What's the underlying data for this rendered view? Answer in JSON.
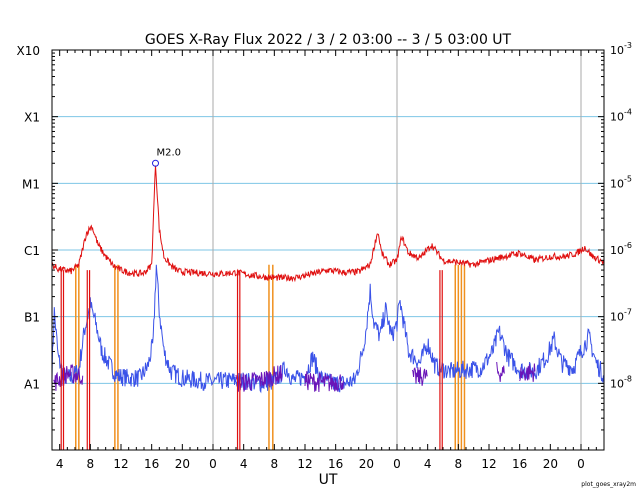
{
  "chart_data": {
    "type": "line",
    "title": "GOES X-Ray Flux   2022 /  3 /  2   03:00 --  3 /  5   03:00   UT",
    "xlabel": "UT",
    "footnote": "plot_goes_xray2m",
    "y_scale": "log",
    "ylim": [
      1e-09,
      0.001
    ],
    "left_labels": [
      {
        "label": "X10",
        "value": 0.001
      },
      {
        "label": "X1",
        "value": 0.0001
      },
      {
        "label": "M1",
        "value": 1e-05
      },
      {
        "label": "C1",
        "value": 1e-06
      },
      {
        "label": "B1",
        "value": 1e-07
      },
      {
        "label": "A1",
        "value": 1e-08
      }
    ],
    "right_labels": [
      {
        "base": "10",
        "exp": "-3",
        "value": 0.001
      },
      {
        "base": "10",
        "exp": "-4",
        "value": 0.0001
      },
      {
        "base": "10",
        "exp": "-5",
        "value": 1e-05
      },
      {
        "base": "10",
        "exp": "-6",
        "value": 1e-06
      },
      {
        "base": "10",
        "exp": "-7",
        "value": 1e-07
      },
      {
        "base": "10",
        "exp": "-8",
        "value": 1e-08
      }
    ],
    "x_range_hours": [
      0,
      72
    ],
    "x_tick_labels": [
      "4",
      "8",
      "12",
      "16",
      "20",
      "0",
      "4",
      "8",
      "12",
      "16",
      "20",
      "0",
      "4",
      "8",
      "12",
      "16",
      "20",
      "0"
    ],
    "day_boundaries_hours": [
      21,
      45,
      69
    ],
    "grid": true,
    "colors": {
      "long": "#e01010",
      "short": "#3a52e8",
      "overlap": "#6a14b8",
      "gap": "#f0901e",
      "grid_h": "#7ec6e6",
      "grid_v": "#aaaaaa"
    },
    "annotation": {
      "label": "M2.0",
      "x": 13.5,
      "y": 2e-05
    },
    "long_channel": [
      [
        0,
        6e-07
      ],
      [
        0.8,
        5.2e-07
      ],
      [
        1.5,
        5e-07
      ],
      [
        2.5,
        4.8e-07
      ],
      [
        3.5,
        6e-07
      ],
      [
        4.5,
        1.8e-06
      ],
      [
        5.2,
        2.3e-06
      ],
      [
        6,
        1.2e-06
      ],
      [
        7,
        8e-07
      ],
      [
        8,
        5.8e-07
      ],
      [
        9,
        5e-07
      ],
      [
        10,
        4.6e-07
      ],
      [
        11,
        4.4e-07
      ],
      [
        12,
        4.5e-07
      ],
      [
        13,
        6e-07
      ],
      [
        13.5,
        2e-05
      ],
      [
        14,
        2e-06
      ],
      [
        14.6,
        8e-07
      ],
      [
        15.5,
        5.8e-07
      ],
      [
        16.5,
        4.8e-07
      ],
      [
        18,
        4.6e-07
      ],
      [
        20,
        4.5e-07
      ],
      [
        22,
        4.4e-07
      ],
      [
        24,
        4.6e-07
      ],
      [
        26,
        4.2e-07
      ],
      [
        28,
        3.9e-07
      ],
      [
        30,
        3.8e-07
      ],
      [
        32,
        3.9e-07
      ],
      [
        34,
        4.4e-07
      ],
      [
        36,
        5e-07
      ],
      [
        38,
        4.6e-07
      ],
      [
        40,
        4.7e-07
      ],
      [
        41.5,
        6e-07
      ],
      [
        42,
        1.1e-06
      ],
      [
        42.5,
        1.9e-06
      ],
      [
        43,
        9e-07
      ],
      [
        44,
        6e-07
      ],
      [
        45,
        7e-07
      ],
      [
        45.6,
        1.6e-06
      ],
      [
        46.5,
        9e-07
      ],
      [
        48,
        7.5e-07
      ],
      [
        49.5,
        1.2e-06
      ],
      [
        51,
        7e-07
      ],
      [
        53,
        6.5e-07
      ],
      [
        55,
        6e-07
      ],
      [
        57,
        7e-07
      ],
      [
        59,
        8e-07
      ],
      [
        61,
        9e-07
      ],
      [
        63,
        7e-07
      ],
      [
        65,
        8e-07
      ],
      [
        67,
        8e-07
      ],
      [
        68.5,
        9e-07
      ],
      [
        69.5,
        1.1e-06
      ],
      [
        70.5,
        8e-07
      ],
      [
        72,
        6.5e-07
      ]
    ],
    "short_channel": [
      [
        0,
        1.6e-08
      ],
      [
        0.3,
        1.2e-07
      ],
      [
        0.8,
        2.5e-08
      ],
      [
        1.5,
        1.3e-08
      ],
      [
        2.5,
        1.2e-08
      ],
      [
        3.5,
        1.6e-08
      ],
      [
        4.2,
        6e-08
      ],
      [
        5,
        1.5e-07
      ],
      [
        5.7,
        8e-08
      ],
      [
        6.5,
        3e-08
      ],
      [
        7.5,
        1.9e-08
      ],
      [
        8.5,
        1.3e-08
      ],
      [
        10,
        1.2e-08
      ],
      [
        11.5,
        1.2e-08
      ],
      [
        12.5,
        1.8e-08
      ],
      [
        13.2,
        4e-08
      ],
      [
        13.6,
        6e-07
      ],
      [
        14,
        1.2e-07
      ],
      [
        14.6,
        3e-08
      ],
      [
        15.5,
        1.5e-08
      ],
      [
        17,
        1.2e-08
      ],
      [
        19,
        1.1e-08
      ],
      [
        21,
        1.05e-08
      ],
      [
        23,
        1.1e-08
      ],
      [
        25,
        1.1e-08
      ],
      [
        27,
        1e-08
      ],
      [
        29,
        1.05e-08
      ],
      [
        30.5,
        1.7e-08
      ],
      [
        31.5,
        1.1e-08
      ],
      [
        33,
        1.3e-08
      ],
      [
        34,
        2.5e-08
      ],
      [
        35,
        1.2e-08
      ],
      [
        36.5,
        1e-08
      ],
      [
        38,
        1e-08
      ],
      [
        39.5,
        1.1e-08
      ],
      [
        40.5,
        3e-08
      ],
      [
        41,
        7e-08
      ],
      [
        41.5,
        2.5e-07
      ],
      [
        42,
        8e-08
      ],
      [
        42.8,
        5e-08
      ],
      [
        43.5,
        1.3e-07
      ],
      [
        44.3,
        5e-08
      ],
      [
        45,
        8e-08
      ],
      [
        45.4,
        1.7e-07
      ],
      [
        46.5,
        3e-08
      ],
      [
        48,
        2e-08
      ],
      [
        49,
        4e-08
      ],
      [
        50,
        1.8e-08
      ],
      [
        52,
        1.5e-08
      ],
      [
        54,
        1.6e-08
      ],
      [
        56,
        1.7e-08
      ],
      [
        57.5,
        3e-08
      ],
      [
        58.3,
        6e-08
      ],
      [
        59.5,
        2.5e-08
      ],
      [
        61,
        1.6e-08
      ],
      [
        63,
        1.5e-08
      ],
      [
        64.5,
        2.5e-08
      ],
      [
        65.5,
        4.5e-08
      ],
      [
        66.5,
        2e-08
      ],
      [
        68,
        1.7e-08
      ],
      [
        69,
        3e-08
      ],
      [
        70,
        5e-08
      ],
      [
        71,
        2e-08
      ],
      [
        72,
        1.3e-08
      ]
    ],
    "overlap_segments": [
      [
        [
          0.2,
          1e-08
        ],
        [
          2,
          1.4e-08
        ],
        [
          4,
          1.3e-08
        ]
      ],
      [
        [
          24,
          1e-08
        ],
        [
          27,
          1.1e-08
        ],
        [
          30,
          1.4e-08
        ]
      ],
      [
        [
          33,
          1.1e-08
        ],
        [
          36,
          1e-08
        ],
        [
          38,
          1.1e-08
        ]
      ],
      [
        [
          47,
          1.2e-08
        ],
        [
          49,
          1.3e-08
        ]
      ],
      [
        [
          58,
          1.5e-08
        ],
        [
          59,
          1.4e-08
        ]
      ],
      [
        [
          61,
          1.4e-08
        ],
        [
          63,
          1.5e-08
        ]
      ]
    ],
    "gap_intervals_hours": [
      [
        3.1,
        3.5
      ],
      [
        8.2,
        8.6
      ],
      [
        28.3,
        28.8
      ],
      [
        52.6,
        53.0
      ],
      [
        53.4,
        53.8
      ]
    ],
    "long_dropouts_hours": [
      [
        1.2,
        1.5
      ],
      [
        4.6,
        4.9
      ],
      [
        24.2,
        24.5
      ],
      [
        50.6,
        50.9
      ]
    ]
  }
}
